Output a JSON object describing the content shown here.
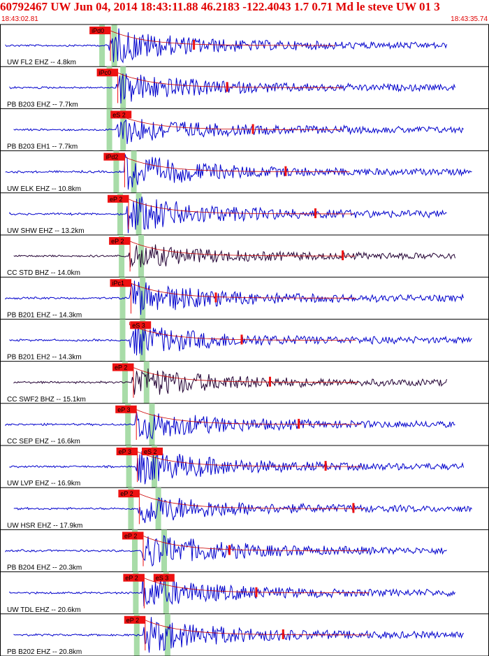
{
  "header": {
    "title": "60792467 UW Jun 04, 2014 18:43:11.88   46.2183 -122.4043  1.7 0.71 Md le steve UW 01   3",
    "start_time": "18:43:02.81",
    "end_time": "18:43:35.74"
  },
  "colors": {
    "header_text": "#e00000",
    "trace_blue": "#0000cc",
    "trace_dark": "#220033",
    "pick_fill": "#ee1111",
    "band_fill": "#a8dca8",
    "coda_line": "#cc0000",
    "separator": "#000000"
  },
  "chart_data": {
    "type": "seismogram",
    "time_range": [
      "18:43:02.81",
      "18:43:35.74"
    ],
    "channels": [
      {
        "label": "UW FL2 EHZ -- 4.8km",
        "color": "trace_blue",
        "p_pick": "iPd0",
        "s_pick": "",
        "p_band": 0.203,
        "s_band": 0.228,
        "amp": 1.0
      },
      {
        "label": "PB B203 EHZ -- 7.7km",
        "color": "trace_blue",
        "p_pick": "iPc0",
        "s_pick": "",
        "p_band": 0.218,
        "s_band": 0.246,
        "amp": 0.9
      },
      {
        "label": "PB B203 EH1 -- 7.7km",
        "color": "trace_blue",
        "p_pick": "",
        "s_pick": "eS 2",
        "p_band": 0.218,
        "s_band": 0.246,
        "amp": 0.8
      },
      {
        "label": "UW ELK EHZ -- 10.8km",
        "color": "trace_blue",
        "p_pick": "iPd2",
        "s_pick": "",
        "p_band": 0.232,
        "s_band": 0.268,
        "amp": 1.0
      },
      {
        "label": "UW SHW EHZ -- 13.2km",
        "color": "trace_blue",
        "p_pick": "eP 2",
        "s_pick": "",
        "p_band": 0.24,
        "s_band": 0.278,
        "amp": 1.1
      },
      {
        "label": "CC STD BHZ -- 14.0km",
        "color": "trace_dark",
        "p_pick": "eP 2",
        "s_pick": "",
        "p_band": 0.243,
        "s_band": 0.283,
        "amp": 0.7
      },
      {
        "label": "PB B201 EHZ -- 14.3km",
        "color": "trace_blue",
        "p_pick": "iPc1",
        "s_pick": "",
        "p_band": 0.245,
        "s_band": 0.286,
        "amp": 1.0
      },
      {
        "label": "PB B201 EH2 -- 14.3km",
        "color": "trace_blue",
        "p_pick": "",
        "s_pick": "eS 3",
        "p_band": 0.245,
        "s_band": 0.286,
        "amp": 0.9
      },
      {
        "label": "CC SWF2 BHZ -- 15.1km",
        "color": "trace_dark",
        "p_pick": "eP 2",
        "s_pick": "",
        "p_band": 0.25,
        "s_band": 0.294,
        "amp": 0.9
      },
      {
        "label": "CC SEP EHZ -- 16.6km",
        "color": "trace_blue",
        "p_pick": "eP 3",
        "s_pick": "",
        "p_band": 0.256,
        "s_band": 0.305,
        "amp": 0.9
      },
      {
        "label": "UW LVP EHZ -- 16.9km",
        "color": "trace_blue",
        "p_pick": "eP 3",
        "s_pick": "eS 2",
        "p_band": 0.258,
        "s_band": 0.31,
        "amp": 1.0
      },
      {
        "label": "UW HSR EHZ -- 17.9km",
        "color": "trace_blue",
        "p_pick": "eP 2",
        "s_pick": "",
        "p_band": 0.262,
        "s_band": 0.318,
        "amp": 0.9
      },
      {
        "label": "PB B204 EHZ -- 20.3km",
        "color": "trace_blue",
        "p_pick": "eP 2",
        "s_pick": "",
        "p_band": 0.27,
        "s_band": 0.33,
        "amp": 1.0
      },
      {
        "label": "UW TDL EHZ -- 20.6km",
        "color": "trace_blue",
        "p_pick": "eP 2",
        "s_pick": "eS 3",
        "p_band": 0.272,
        "s_band": 0.334,
        "amp": 0.9
      },
      {
        "label": "PB B202 EHZ -- 20.8km",
        "color": "trace_blue",
        "p_pick": "eP 2",
        "s_pick": "",
        "p_band": 0.274,
        "s_band": 0.337,
        "amp": 1.0
      }
    ]
  }
}
